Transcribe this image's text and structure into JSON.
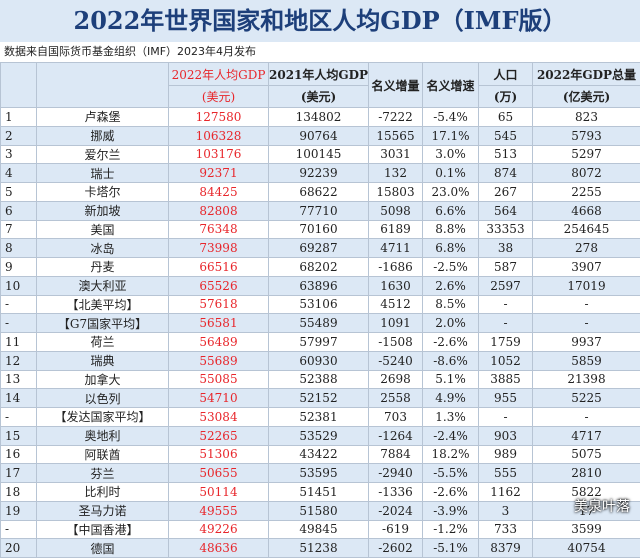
{
  "title": "2022年世界国家和地区人均GDP（IMF版）",
  "source": "数据来自国际货币基金组织（IMF）2023年4月发布",
  "headers": {
    "gdp2022_line1": "2022年人均GDP",
    "gdp2022_line2": "(美元)",
    "gdp2021_line1": "2021年人均GDP",
    "gdp2021_line2": "(美元)",
    "nominal_increase": "名义增量",
    "nominal_growth": "名义增速",
    "population_line1": "人口",
    "population_line2": "(万)",
    "total_line1": "2022年GDP总量",
    "total_line2": "(亿美元)"
  },
  "rows": [
    [
      "1",
      "卢森堡",
      "127580",
      "134802",
      "-7222",
      "-5.4%",
      "65",
      "823"
    ],
    [
      "2",
      "挪威",
      "106328",
      "90764",
      "15565",
      "17.1%",
      "545",
      "5793"
    ],
    [
      "3",
      "爱尔兰",
      "103176",
      "100145",
      "3031",
      "3.0%",
      "513",
      "5297"
    ],
    [
      "4",
      "瑞士",
      "92371",
      "92239",
      "132",
      "0.1%",
      "874",
      "8072"
    ],
    [
      "5",
      "卡塔尔",
      "84425",
      "68622",
      "15803",
      "23.0%",
      "267",
      "2255"
    ],
    [
      "6",
      "新加坡",
      "82808",
      "77710",
      "5098",
      "6.6%",
      "564",
      "4668"
    ],
    [
      "7",
      "美国",
      "76348",
      "70160",
      "6189",
      "8.8%",
      "33353",
      "254645"
    ],
    [
      "8",
      "冰岛",
      "73998",
      "69287",
      "4711",
      "6.8%",
      "38",
      "278"
    ],
    [
      "9",
      "丹麦",
      "66516",
      "68202",
      "-1686",
      "-2.5%",
      "587",
      "3907"
    ],
    [
      "10",
      "澳大利亚",
      "65526",
      "63896",
      "1630",
      "2.6%",
      "2597",
      "17019"
    ],
    [
      "-",
      "【北美平均】",
      "57618",
      "53106",
      "4512",
      "8.5%",
      "-",
      "-"
    ],
    [
      "-",
      "【G7国家平均】",
      "56581",
      "55489",
      "1091",
      "2.0%",
      "-",
      "-"
    ],
    [
      "11",
      "荷兰",
      "56489",
      "57997",
      "-1508",
      "-2.6%",
      "1759",
      "9937"
    ],
    [
      "12",
      "瑞典",
      "55689",
      "60930",
      "-5240",
      "-8.6%",
      "1052",
      "5859"
    ],
    [
      "13",
      "加拿大",
      "55085",
      "52388",
      "2698",
      "5.1%",
      "3885",
      "21398"
    ],
    [
      "14",
      "以色列",
      "54710",
      "52152",
      "2558",
      "4.9%",
      "955",
      "5225"
    ],
    [
      "-",
      "【发达国家平均】",
      "53084",
      "52381",
      "703",
      "1.3%",
      "-",
      "-"
    ],
    [
      "15",
      "奥地利",
      "52265",
      "53529",
      "-1264",
      "-2.4%",
      "903",
      "4717"
    ],
    [
      "16",
      "阿联酋",
      "51306",
      "43422",
      "7884",
      "18.2%",
      "989",
      "5075"
    ],
    [
      "17",
      "芬兰",
      "50655",
      "53595",
      "-2940",
      "-5.5%",
      "555",
      "2810"
    ],
    [
      "18",
      "比利时",
      "50114",
      "51451",
      "-1336",
      "-2.6%",
      "1162",
      "5822"
    ],
    [
      "19",
      "圣马力诺",
      "49555",
      "51580",
      "-2024",
      "-3.9%",
      "3",
      "17"
    ],
    [
      "-",
      "【中国香港】",
      "49226",
      "49845",
      "-619",
      "-1.2%",
      "733",
      "3599"
    ],
    [
      "20",
      "德国",
      "48636",
      "51238",
      "-2602",
      "-5.1%",
      "8379",
      "40754"
    ]
  ],
  "watermark": "美泉叶落"
}
